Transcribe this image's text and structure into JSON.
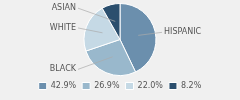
{
  "chart_data": {
    "type": "pie",
    "categories": [
      "HISPANIC",
      "BLACK",
      "WHITE",
      "ASIAN"
    ],
    "values": [
      42.9,
      26.9,
      22.0,
      8.2
    ],
    "value_labels": [
      "42.9%",
      "26.9%",
      "22.0%",
      "8.2%"
    ],
    "colors": [
      "#6b8fad",
      "#99b8cc",
      "#c5d9e5",
      "#2b4f6e"
    ],
    "legend": "bottom"
  }
}
